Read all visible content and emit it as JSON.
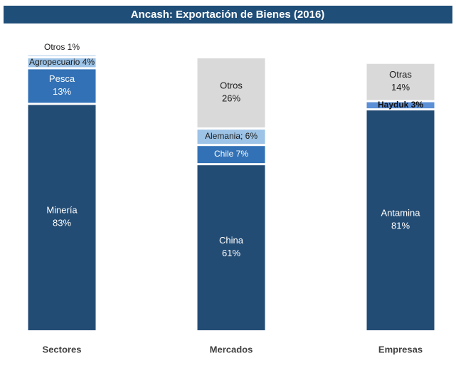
{
  "chart_data": {
    "type": "stacked-bar-100",
    "title": "Ancash: Exportación de Bienes (2016)",
    "title_color": "#1f4e79",
    "ylim": [
      0,
      100
    ],
    "stacks": [
      {
        "category": "Sectores",
        "segments": [
          {
            "value": 83,
            "label_lines": [
              "Minería",
              "83%"
            ],
            "color": "#234c74",
            "label_color": "#ffffff",
            "bold": false
          },
          {
            "value": 13,
            "label_lines": [
              "Pesca",
              "13%"
            ],
            "color": "#3271b5",
            "label_color": "#ffffff",
            "bold": false
          },
          {
            "value": 4,
            "label_lines": [
              "Agropecuario 4%"
            ],
            "color": "#9dc3e6",
            "label_color": "#1a1a1a",
            "bold": false
          },
          {
            "value": 1,
            "label_lines": [
              "Otros 1%"
            ],
            "color": "#9dc3e6",
            "label_color": "#1a1a1a",
            "bold": false
          }
        ]
      },
      {
        "category": "Mercados",
        "segments": [
          {
            "value": 61,
            "label_lines": [
              "China",
              "61%"
            ],
            "color": "#234c74",
            "label_color": "#ffffff",
            "bold": false
          },
          {
            "value": 7,
            "label_lines": [
              "Chile 7%"
            ],
            "color": "#3271b5",
            "label_color": "#ffffff",
            "bold": false
          },
          {
            "value": 6,
            "label_lines": [
              "Alemania; 6%"
            ],
            "color": "#9dc3e6",
            "label_color": "#1a1a1a",
            "bold": false
          },
          {
            "value": 26,
            "label_lines": [
              "Otros",
              "26%"
            ],
            "color": "#d9d9d9",
            "label_color": "#1a1a1a",
            "bold": false
          }
        ]
      },
      {
        "category": "Empresas",
        "segments": [
          {
            "value": 81,
            "label_lines": [
              "Antamina",
              "81%"
            ],
            "color": "#234c74",
            "label_color": "#ffffff",
            "bold": false
          },
          {
            "value": 3,
            "label_lines": [
              "Hayduk 3%"
            ],
            "color": "#5b8fd6",
            "label_color": "#111111",
            "bold": true
          },
          {
            "value": 14,
            "label_lines": [
              "Otras",
              "14%"
            ],
            "color": "#d9d9d9",
            "label_color": "#1a1a1a",
            "bold": false
          }
        ]
      }
    ]
  }
}
